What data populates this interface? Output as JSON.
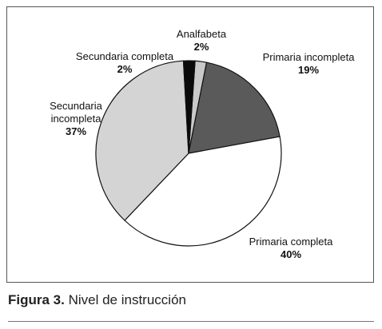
{
  "chart_data": {
    "type": "pie",
    "slices": [
      {
        "label": "Analfabeta",
        "value": 2,
        "value_label": "2%",
        "color": "#c9c9c9"
      },
      {
        "label": "Primaria incompleta",
        "value": 19,
        "value_label": "19%",
        "color": "#5a5a5a"
      },
      {
        "label": "Primaria completa",
        "value": 40,
        "value_label": "40%",
        "color": "#ffffff"
      },
      {
        "label": "Secundaria incompleta",
        "value": 37,
        "value_label": "37%",
        "color": "#d4d4d4"
      },
      {
        "label": "Secundaria completa",
        "value": 2,
        "value_label": "2%",
        "color": "#0a0a0a"
      }
    ]
  },
  "caption": {
    "figure": "Figura 3.",
    "text": " Nivel de instrucción"
  }
}
